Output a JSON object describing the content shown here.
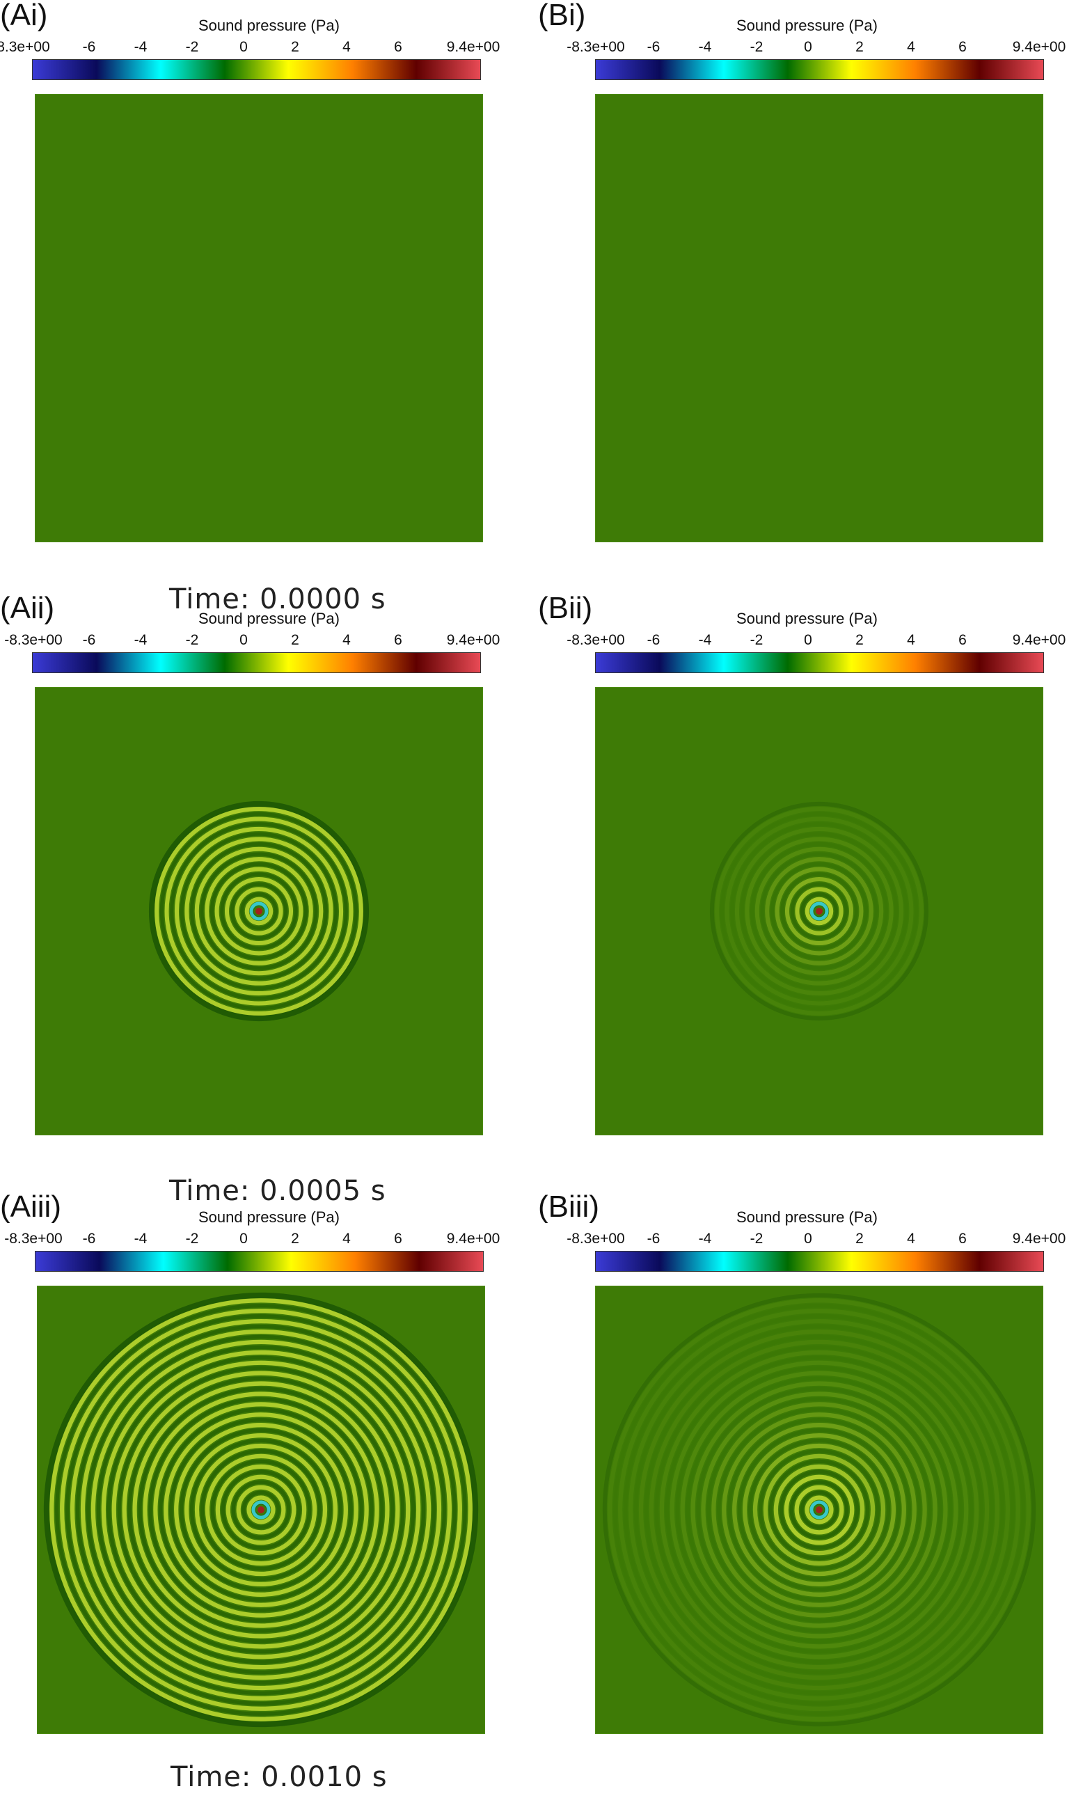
{
  "colorbar": {
    "title": "Sound pressure (Pa)",
    "tick_labels": [
      "-8.3e+00",
      "-6",
      "-4",
      "-2",
      "0",
      "2",
      "4",
      "6",
      "9.4e+00"
    ],
    "colors": [
      "#3b3bd6",
      "#0a0a5a",
      "#00ffff",
      "#006b00",
      "#ffff00",
      "#ff8000",
      "#600000",
      "#e84a55"
    ]
  },
  "panels": [
    {
      "label": "(Ai)",
      "rings": 0,
      "radius_fraction": 0.0,
      "ring_amplitude": "strong"
    },
    {
      "label": "(Bi)",
      "rings": 0,
      "radius_fraction": 0.0,
      "ring_amplitude": "weak"
    },
    {
      "label": "(Aii)",
      "rings": 10,
      "radius_fraction": 0.24,
      "ring_amplitude": "strong"
    },
    {
      "label": "(Bii)",
      "rings": 10,
      "radius_fraction": 0.24,
      "ring_amplitude": "weak"
    },
    {
      "label": "(Aiii)",
      "rings": 20,
      "radius_fraction": 0.48,
      "ring_amplitude": "strong"
    },
    {
      "label": "(Biii)",
      "rings": 20,
      "radius_fraction": 0.48,
      "ring_amplitude": "weak"
    }
  ],
  "times": [
    "Time: 0.0000 s",
    "Time: 0.0005 s",
    "Time: 0.0010 s"
  ],
  "field_color": "#3e7b06"
}
